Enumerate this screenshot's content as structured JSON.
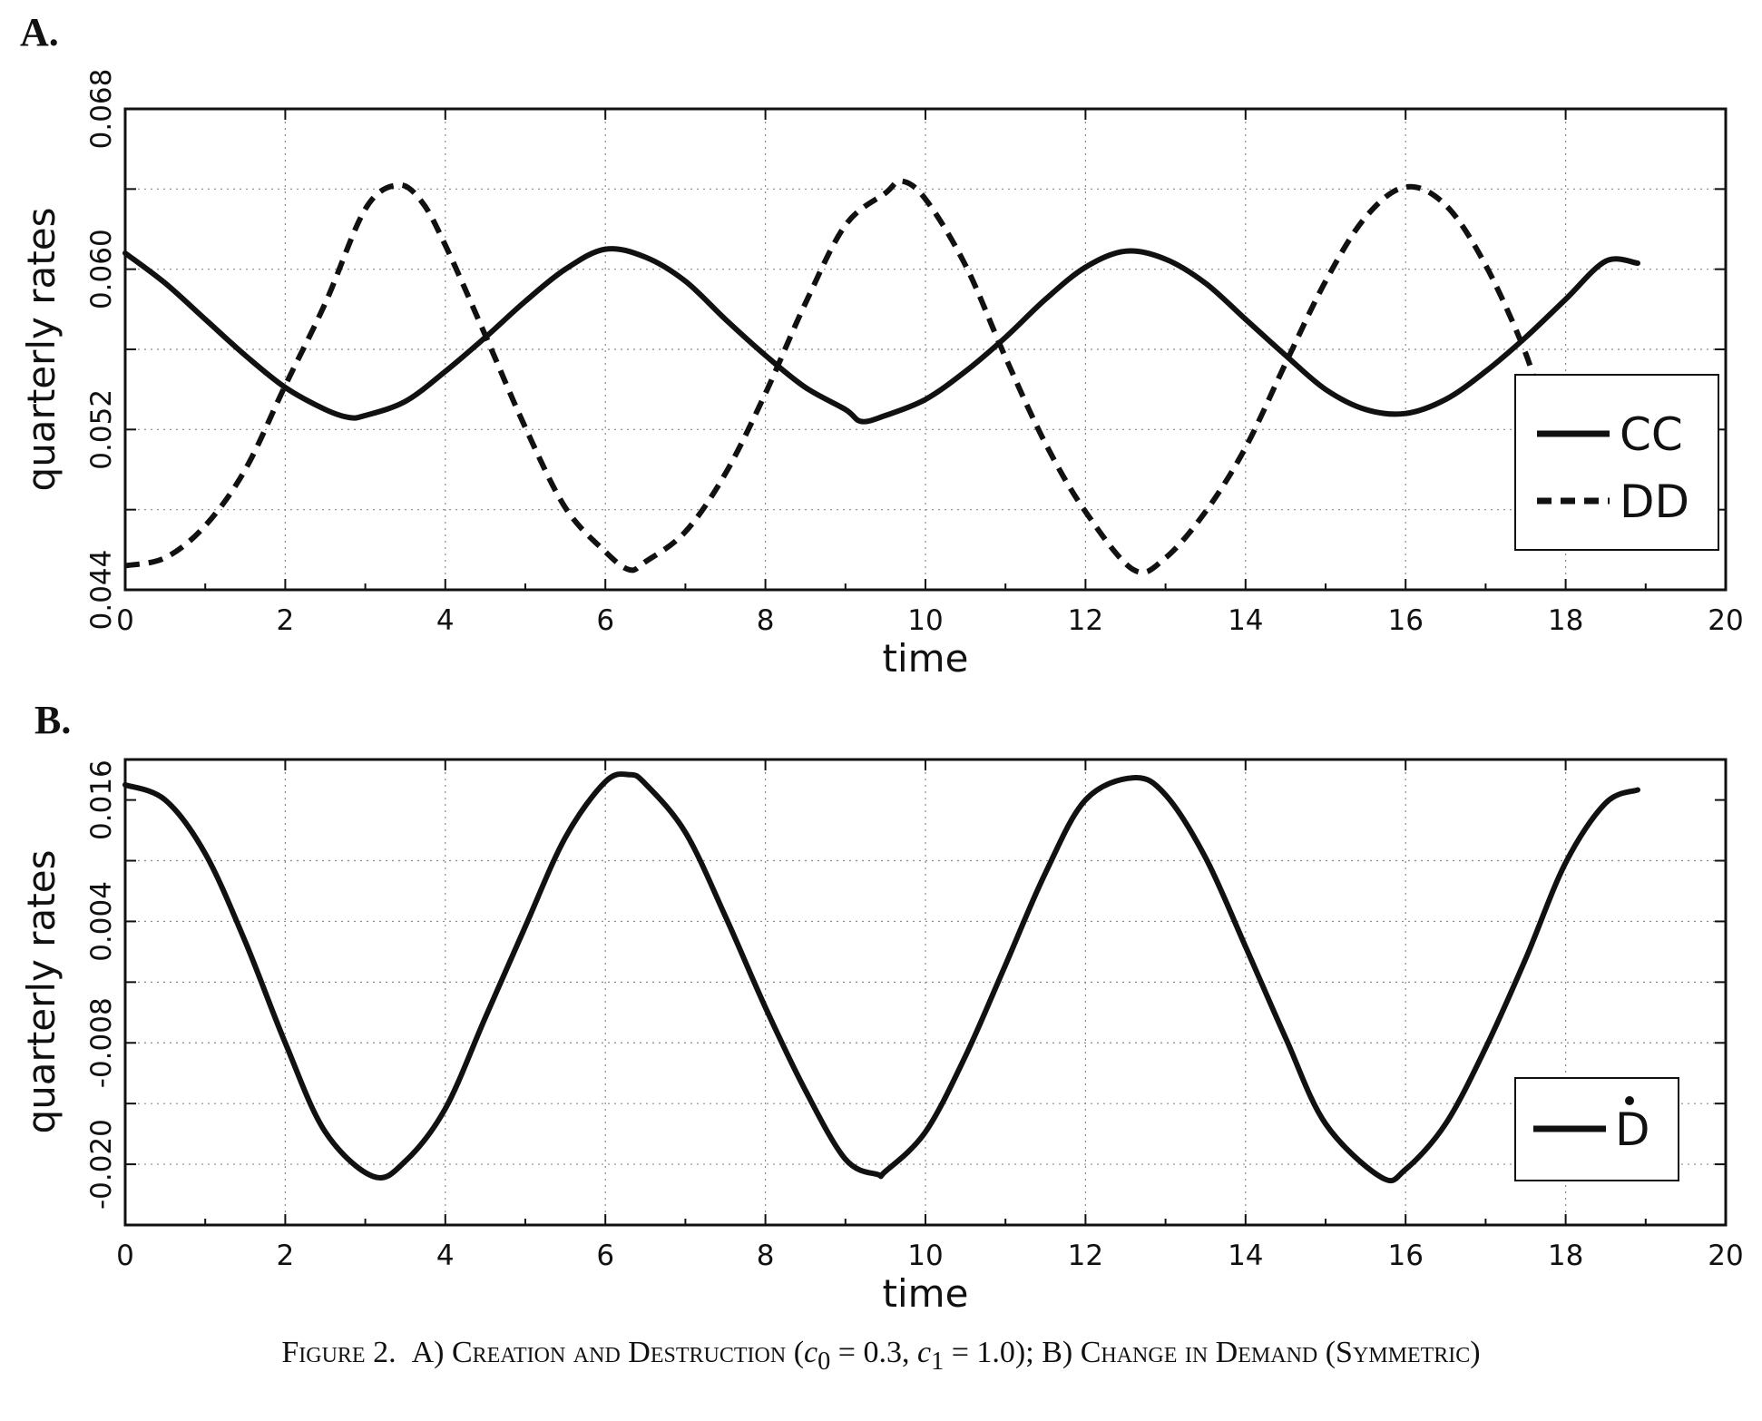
{
  "caption": {
    "figure_label": "Figure 2.",
    "part_a": "A) Creation and Destruction",
    "params_open": "(",
    "c0_symbol": "c",
    "c0_sub": "0",
    "c0_value": " = 0.3, ",
    "c1_symbol": "c",
    "c1_sub": "1",
    "c1_value": " = 1.0)",
    "separator": "; ",
    "part_b": "B) Change in Demand (Symmetric)"
  },
  "chart_data": [
    {
      "panel": "A.",
      "type": "line",
      "title": "",
      "xlabel": "time",
      "ylabel": "quarterly rates",
      "xlim": [
        0,
        20
      ],
      "ylim": [
        0.044,
        0.068
      ],
      "xticks": [
        0,
        2,
        4,
        6,
        8,
        10,
        12,
        14,
        16,
        18,
        20
      ],
      "xtick_labels": [
        "0",
        "2",
        "4",
        "6",
        "8",
        "10",
        "12",
        "14",
        "16",
        "18",
        "20"
      ],
      "yticks": [
        0.044,
        0.048,
        0.052,
        0.056,
        0.06,
        0.064,
        0.068
      ],
      "ytick_labels": [
        "0.044",
        "0.052",
        "0.060",
        "0.068"
      ],
      "ytick_labeled_values": [
        0.044,
        0.052,
        0.06,
        0.068
      ],
      "grid": true,
      "legend_position": "right",
      "series": [
        {
          "name": "CC",
          "style": "solid",
          "x": [
            0,
            0.5,
            1,
            1.5,
            2,
            2.5,
            2.8,
            3,
            3.5,
            4,
            4.5,
            5,
            5.5,
            6,
            6.5,
            7,
            7.5,
            8,
            8.5,
            9,
            9.2,
            9.5,
            10,
            10.5,
            11,
            11.5,
            12,
            12.5,
            13,
            13.5,
            14,
            14.5,
            15,
            15.5,
            16,
            16.5,
            17,
            17.5,
            18,
            18.5,
            18.9
          ],
          "y": [
            0.0608,
            0.0593,
            0.0575,
            0.0557,
            0.0541,
            0.053,
            0.0526,
            0.0527,
            0.0534,
            0.0549,
            0.0566,
            0.0584,
            0.06,
            0.061,
            0.0606,
            0.0594,
            0.0575,
            0.0557,
            0.0541,
            0.053,
            0.0524,
            0.0527,
            0.0535,
            0.0549,
            0.0566,
            0.0585,
            0.0601,
            0.0609,
            0.0605,
            0.0593,
            0.0575,
            0.0557,
            0.054,
            0.053,
            0.0528,
            0.0535,
            0.0549,
            0.0566,
            0.0585,
            0.0604,
            0.0603
          ]
        },
        {
          "name": "DD",
          "style": "dashed",
          "x": [
            0,
            0.5,
            1,
            1.5,
            2,
            2.5,
            3,
            3.4,
            3.7,
            4,
            4.5,
            5,
            5.5,
            6,
            6.3,
            6.5,
            7,
            7.5,
            8,
            8.5,
            9,
            9.5,
            9.7,
            10,
            10.5,
            11,
            11.5,
            12,
            12.6,
            13,
            13.5,
            14,
            14.5,
            15,
            15.5,
            16,
            16.5,
            17,
            17.5,
            17.7
          ],
          "y": [
            0.0452,
            0.0456,
            0.0472,
            0.05,
            0.0542,
            0.0583,
            0.063,
            0.0642,
            0.0634,
            0.0612,
            0.0567,
            0.0521,
            0.0481,
            0.0459,
            0.045,
            0.0454,
            0.0469,
            0.0498,
            0.0538,
            0.0583,
            0.0622,
            0.0638,
            0.0644,
            0.0635,
            0.0602,
            0.0556,
            0.0513,
            0.0479,
            0.045,
            0.0456,
            0.0479,
            0.0511,
            0.0553,
            0.0594,
            0.0626,
            0.0641,
            0.0632,
            0.0602,
            0.0558,
            0.053
          ]
        }
      ]
    },
    {
      "panel": "B.",
      "type": "line",
      "title": "",
      "xlabel": "time",
      "ylabel": "quarterly rates",
      "xlim": [
        0,
        20
      ],
      "ylim": [
        -0.026,
        0.02
      ],
      "xticks": [
        0,
        2,
        4,
        6,
        8,
        10,
        12,
        14,
        16,
        18,
        20
      ],
      "xtick_labels": [
        "0",
        "2",
        "4",
        "6",
        "8",
        "10",
        "12",
        "14",
        "16",
        "18",
        "20"
      ],
      "yticks": [
        -0.026,
        -0.02,
        -0.014,
        -0.008,
        -0.002,
        0.004,
        0.01,
        0.016
      ],
      "ytick_labels": [
        "-0.020",
        "-0.008",
        "0.004",
        "0.016"
      ],
      "ytick_labeled_values": [
        -0.02,
        -0.008,
        0.004,
        0.016
      ],
      "grid": true,
      "legend_position": "right",
      "series": [
        {
          "name": "D",
          "name_mark": "dot-above",
          "style": "solid",
          "x": [
            0,
            0.5,
            1,
            1.5,
            2,
            2.5,
            3.1,
            3.5,
            4,
            4.5,
            5,
            5.5,
            6,
            6.3,
            6.5,
            7,
            7.5,
            8,
            8.5,
            9,
            9.4,
            9.5,
            10,
            10.5,
            11,
            11.5,
            12,
            12.6,
            13,
            13.5,
            14,
            14.5,
            15,
            15.7,
            16,
            16.5,
            17,
            17.5,
            18,
            18.5,
            18.9
          ],
          "y": [
            0.0175,
            0.016,
            0.0107,
            0.002,
            -0.008,
            -0.0168,
            -0.0212,
            -0.0197,
            -0.0145,
            -0.0055,
            0.0035,
            0.0123,
            0.0178,
            0.0185,
            0.0176,
            0.0128,
            0.0045,
            -0.0045,
            -0.0127,
            -0.0195,
            -0.021,
            -0.0207,
            -0.0168,
            -0.0093,
            -0.0003,
            0.0088,
            0.016,
            0.0182,
            0.0165,
            0.0103,
            0.0015,
            -0.0075,
            -0.016,
            -0.0213,
            -0.0205,
            -0.016,
            -0.0085,
            0.0003,
            0.0098,
            0.0157,
            0.017
          ]
        }
      ]
    }
  ]
}
